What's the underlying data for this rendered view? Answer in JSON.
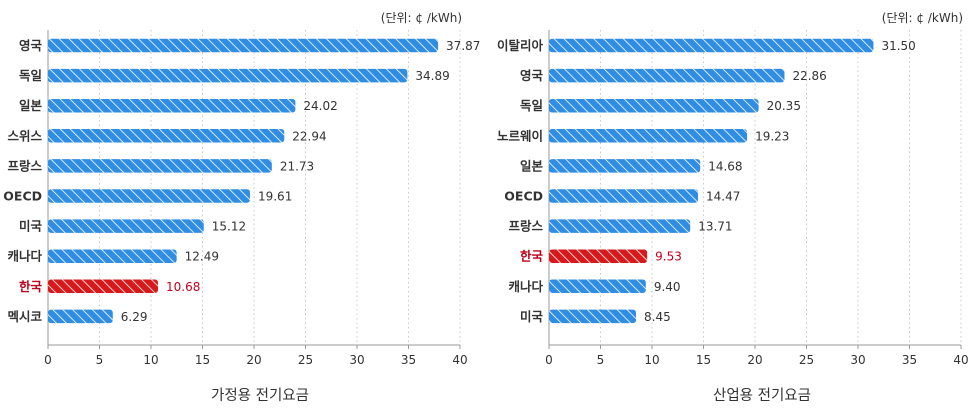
{
  "colors": {
    "bar": "#2f8de4",
    "highlight_bar": "#d7191c",
    "highlight_text": "#c0001a",
    "text": "#333333",
    "grid": "#c8c8c8",
    "axis": "#999999"
  },
  "chart_data": [
    {
      "type": "bar",
      "orientation": "horizontal",
      "title": "가정용 전기요금",
      "unit": "(단위: ¢ /kWh)",
      "categories": [
        "영국",
        "독일",
        "일본",
        "스위스",
        "프랑스",
        "OECD",
        "미국",
        "캐나다",
        "한국",
        "멕시코"
      ],
      "values": [
        37.87,
        34.89,
        24.02,
        22.94,
        21.73,
        19.61,
        15.12,
        12.49,
        10.68,
        6.29
      ],
      "value_labels": [
        "37.87",
        "34.89",
        "24.02",
        "22.94",
        "21.73",
        "19.61",
        "15.12",
        "12.49",
        "10.68",
        "6.29"
      ],
      "highlight": "한국",
      "xlim": [
        0,
        40
      ],
      "xticks": [
        0,
        5,
        10,
        15,
        20,
        25,
        30,
        35,
        40
      ],
      "grid": "vertical dotted"
    },
    {
      "type": "bar",
      "orientation": "horizontal",
      "title": "산업용 전기요금",
      "unit": "(단위: ¢ /kWh)",
      "categories": [
        "이탈리아",
        "영국",
        "독일",
        "노르웨이",
        "일본",
        "OECD",
        "프랑스",
        "한국",
        "캐나다",
        "미국"
      ],
      "values": [
        31.5,
        22.86,
        20.35,
        19.23,
        14.68,
        14.47,
        13.71,
        9.53,
        9.4,
        8.45
      ],
      "value_labels": [
        "31.50",
        "22.86",
        "20.35",
        "19.23",
        "14.68",
        "14.47",
        "13.71",
        "9.53",
        "9.40",
        "8.45"
      ],
      "highlight": "한국",
      "xlim": [
        0,
        40
      ],
      "xticks": [
        0,
        5,
        10,
        15,
        20,
        25,
        30,
        35,
        40
      ],
      "grid": "vertical dotted"
    }
  ]
}
